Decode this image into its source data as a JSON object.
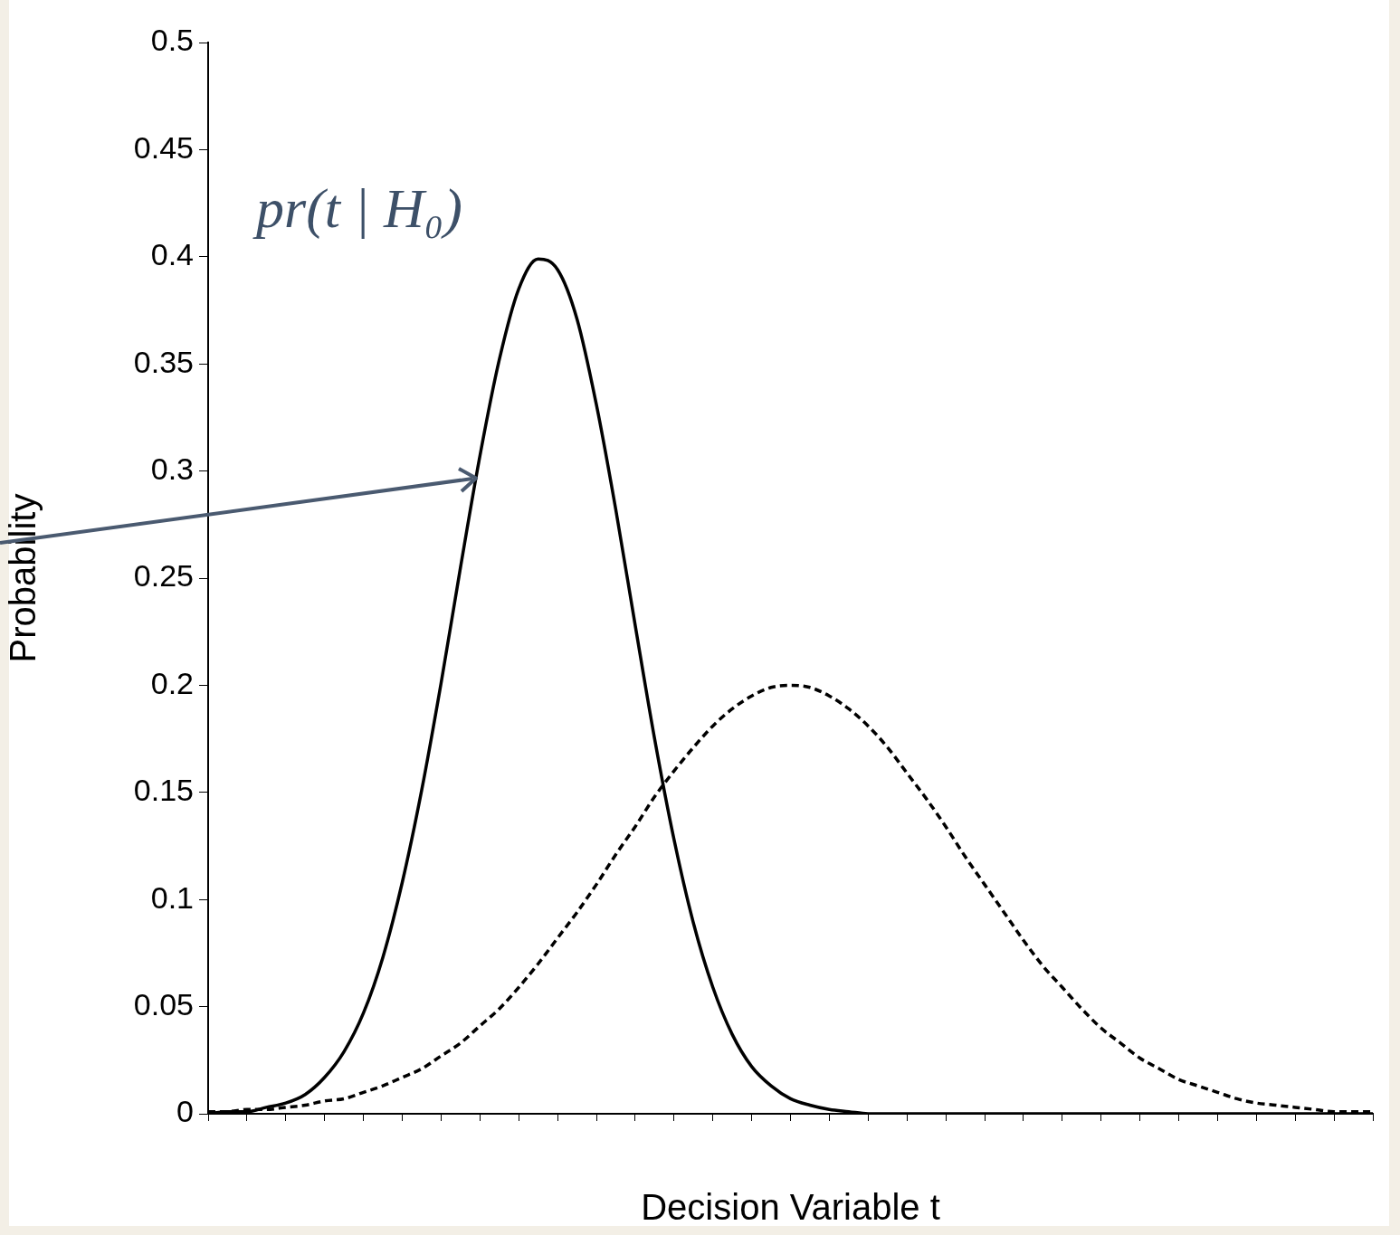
{
  "chart_data": {
    "type": "line",
    "xlabel": "Decision Variable t",
    "ylabel": "Probability",
    "categories": [
      null,
      null,
      null,
      null,
      null,
      null,
      null,
      null,
      null,
      null,
      null,
      null,
      null,
      null,
      null,
      null,
      null,
      null,
      null,
      null,
      null,
      null,
      null,
      null,
      null,
      null,
      null,
      null,
      null,
      null,
      null,
      null,
      null,
      null,
      null,
      null,
      null,
      null,
      null,
      null,
      null,
      null,
      null,
      null,
      null,
      null,
      null,
      null,
      null,
      null,
      null,
      null,
      null,
      null,
      null,
      null,
      null,
      null,
      null,
      null,
      null
    ],
    "series": [
      {
        "color": "#000000",
        "line_style": "solid",
        "values": [
          0.0,
          0.001,
          0.001,
          0.003,
          0.005,
          0.009,
          0.017,
          0.029,
          0.047,
          0.073,
          0.108,
          0.151,
          0.201,
          0.255,
          0.307,
          0.352,
          0.385,
          0.399,
          0.394,
          0.371,
          0.331,
          0.282,
          0.228,
          0.175,
          0.128,
          0.089,
          0.059,
          0.037,
          0.022,
          0.013,
          0.007,
          0.004,
          0.002,
          0.001,
          0.0,
          0.0,
          0.0,
          0.0,
          0.0,
          0.0,
          0.0,
          0.0,
          0.0,
          0.0,
          0.0,
          0.0,
          0.0,
          0.0,
          0.0,
          0.0,
          0.0,
          0.0,
          0.0,
          0.0,
          0.0,
          0.0,
          0.0,
          0.0,
          0.0,
          0.0,
          0.0
        ]
      },
      {
        "color": "#000000",
        "line_style": "dashed",
        "values": [
          0.001,
          0.001,
          0.002,
          0.002,
          0.003,
          0.004,
          0.006,
          0.007,
          0.01,
          0.013,
          0.017,
          0.021,
          0.027,
          0.033,
          0.041,
          0.049,
          0.059,
          0.07,
          0.082,
          0.094,
          0.107,
          0.121,
          0.134,
          0.148,
          0.16,
          0.171,
          0.181,
          0.189,
          0.195,
          0.199,
          0.2,
          0.199,
          0.195,
          0.189,
          0.181,
          0.171,
          0.159,
          0.147,
          0.134,
          0.12,
          0.107,
          0.094,
          0.081,
          0.069,
          0.059,
          0.049,
          0.04,
          0.033,
          0.026,
          0.021,
          0.016,
          0.013,
          0.01,
          0.007,
          0.005,
          0.004,
          0.003,
          0.002,
          0.001,
          0.001,
          0.001
        ]
      }
    ],
    "ylim": [
      0,
      0.5
    ],
    "yticks": [
      0,
      0.05,
      0.1,
      0.15,
      0.2,
      0.25,
      0.3,
      0.35,
      0.4,
      0.45,
      0.5
    ],
    "grid": false,
    "legend": false,
    "marker": "none",
    "annotations": [
      "pr(t | H₀)"
    ]
  }
}
